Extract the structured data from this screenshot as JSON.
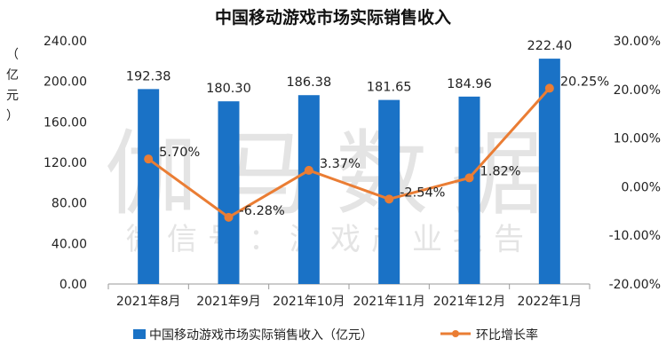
{
  "chart_data": {
    "type": "bar",
    "title": "中国移动游戏市场实际销售收入",
    "categories": [
      "2021年8月",
      "2021年9月",
      "2021年10月",
      "2021年11月",
      "2021年12月",
      "2022年1月"
    ],
    "series": [
      {
        "name": "中国移动游戏市场实际销售收入（亿元）",
        "type": "bar",
        "axis": "left",
        "values": [
          192.38,
          180.3,
          186.38,
          181.65,
          184.96,
          222.4
        ],
        "labels": [
          "192.38",
          "180.30",
          "186.38",
          "181.65",
          "184.96",
          "222.40"
        ]
      },
      {
        "name": "环比增长率",
        "type": "line",
        "axis": "right",
        "values": [
          5.7,
          -6.28,
          3.37,
          -2.54,
          1.82,
          20.25
        ],
        "labels": [
          "5.70%",
          "-6.28%",
          "3.37%",
          "-2.54%",
          "1.82%",
          "20.25%"
        ]
      }
    ],
    "left_axis": {
      "label": "（亿元）",
      "ylim": [
        0,
        240
      ],
      "ticks": [
        "0.00",
        "40.00",
        "80.00",
        "120.00",
        "160.00",
        "200.00",
        "240.00"
      ]
    },
    "right_axis": {
      "ylim": [
        -20,
        30
      ],
      "ticks": [
        "-20.00%",
        "-10.00%",
        "0.00%",
        "10.00%",
        "20.00%",
        "30.00%"
      ]
    },
    "grid": false,
    "legend_position": "bottom"
  },
  "watermark": {
    "main": "伽马数据",
    "sub": "微信号：游戏产业报告"
  },
  "colors": {
    "bar": "#1a72c6",
    "line": "#ea7d34",
    "axis": "#9a9a9a",
    "text": "#222222"
  }
}
